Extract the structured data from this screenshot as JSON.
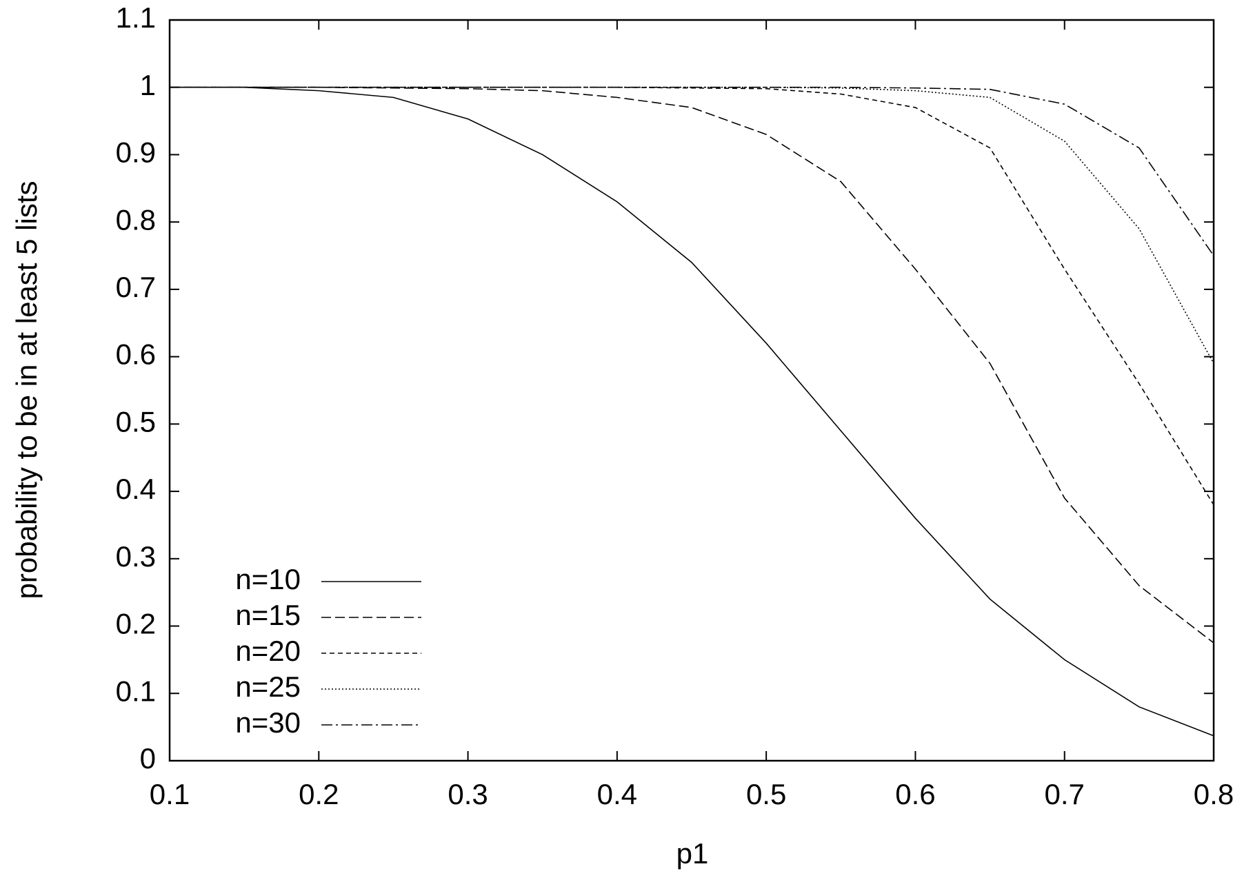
{
  "chart_data": {
    "type": "line",
    "xlabel": "p1",
    "ylabel": "probability to be in at least 5 lists",
    "x": [
      0.1,
      0.15,
      0.2,
      0.25,
      0.3,
      0.35,
      0.4,
      0.45,
      0.5,
      0.55,
      0.6,
      0.65,
      0.7,
      0.75,
      0.8
    ],
    "series": [
      {
        "name": "n=10",
        "color": "#000000",
        "dash": "none",
        "values": [
          1,
          1,
          0.995,
          0.985,
          0.953,
          0.9,
          0.83,
          0.74,
          0.62,
          0.49,
          0.36,
          0.24,
          0.15,
          0.08,
          0.037
        ]
      },
      {
        "name": "n=15",
        "color": "#000000",
        "dash": "14 6",
        "values": [
          1,
          1,
          1,
          0.999,
          0.998,
          0.995,
          0.985,
          0.97,
          0.93,
          0.86,
          0.73,
          0.59,
          0.39,
          0.26,
          0.175
        ]
      },
      {
        "name": "n=20",
        "color": "#000000",
        "dash": "7 5",
        "values": [
          1,
          1,
          1,
          1,
          1,
          1,
          1,
          0.999,
          0.998,
          0.99,
          0.97,
          0.91,
          0.73,
          0.56,
          0.38
        ]
      },
      {
        "name": "n=25",
        "color": "#000000",
        "dash": "2 3",
        "values": [
          1,
          1,
          1,
          1,
          1,
          1,
          1,
          1,
          1,
          0.999,
          0.995,
          0.985,
          0.92,
          0.79,
          0.59
        ]
      },
      {
        "name": "n=30",
        "color": "#000000",
        "dash": "16 5 3 5",
        "values": [
          1,
          1,
          1,
          1,
          1,
          1,
          1,
          1,
          1,
          1,
          0.999,
          0.997,
          0.975,
          0.91,
          0.75
        ]
      }
    ],
    "xlim": [
      0.1,
      0.8
    ],
    "xticks": [
      0.1,
      0.2,
      0.3,
      0.4,
      0.5,
      0.6,
      0.7,
      0.8
    ],
    "ylim": [
      0,
      1.1
    ],
    "yticks": [
      0,
      0.1,
      0.2,
      0.3,
      0.4,
      0.5,
      0.6,
      0.7,
      0.8,
      0.9,
      1,
      1.1
    ],
    "legend": "lower left"
  }
}
